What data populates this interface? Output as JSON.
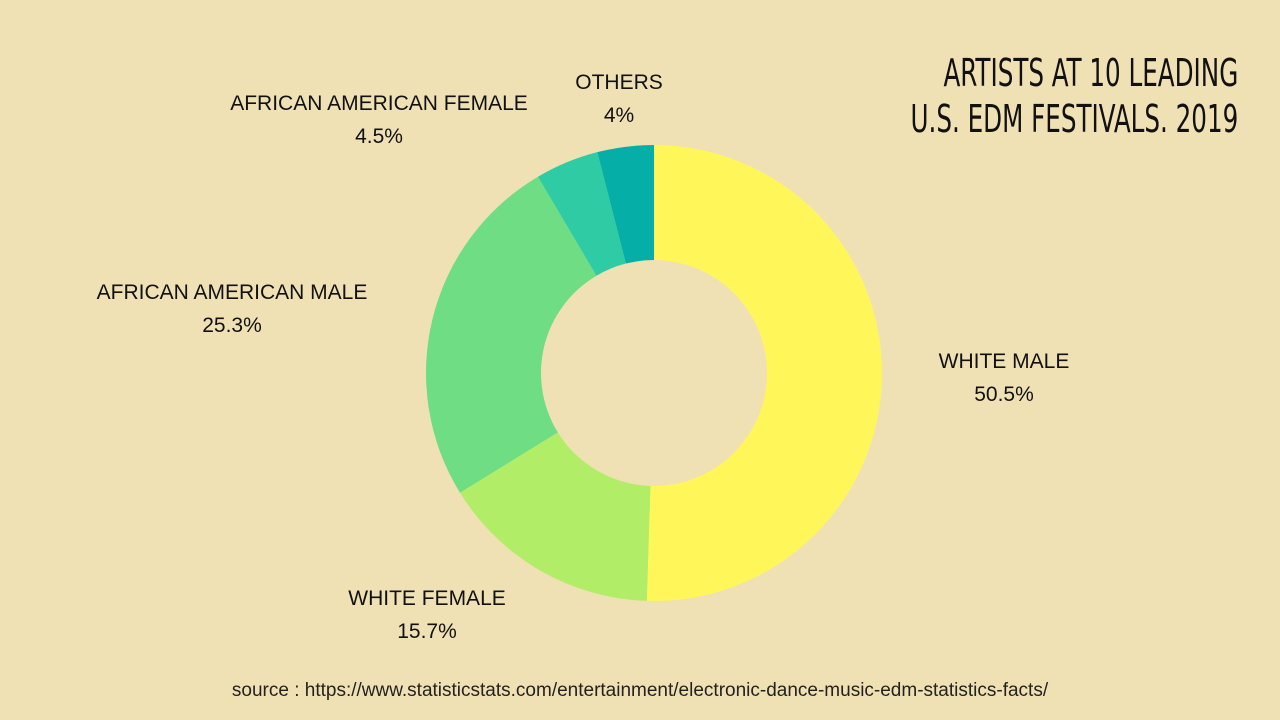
{
  "chart_data": {
    "type": "pie",
    "variant": "donut",
    "title_lines": [
      "ARTISTS AT 10 LEADING",
      "U.S. EDM FESTIVALS. 2019"
    ],
    "slices": [
      {
        "label": "WHITE MALE",
        "value": 50.5,
        "display": "50.5%",
        "color": "#fff75a"
      },
      {
        "label": "WHITE FEMALE",
        "value": 15.7,
        "display": "15.7%",
        "color": "#b2ed68"
      },
      {
        "label": "AFRICAN AMERICAN MALE",
        "value": 25.3,
        "display": "25.3%",
        "color": "#6edd84"
      },
      {
        "label": "AFRICAN AMERICAN FEMALE",
        "value": 4.5,
        "display": "4.5%",
        "color": "#2ecba4"
      },
      {
        "label": "OTHERS",
        "value": 4,
        "display": "4%",
        "color": "#06aea8"
      }
    ],
    "legend": "none"
  },
  "source": "source : https://www.statisticstats.com/entertainment/electronic-dance-music-edm-statistics-facts/"
}
